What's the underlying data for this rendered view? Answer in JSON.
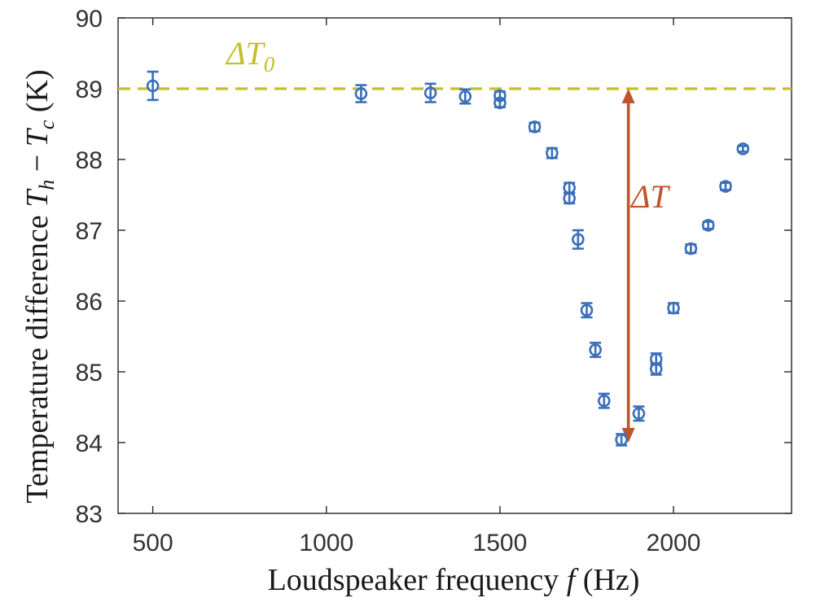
{
  "chart_data": {
    "type": "scatter",
    "xlabel": {
      "text": "Loudspeaker frequency ",
      "var": "f",
      "unit": " (Hz)"
    },
    "ylabel": {
      "text": "Temperature difference ",
      "var1": "T",
      "sub1": "h",
      "minus": " − ",
      "var2": "T",
      "sub2": "c",
      "unit": " (K)"
    },
    "xlim": [
      400,
      2340
    ],
    "ylim": [
      83,
      90
    ],
    "xticks": [
      "500",
      "1000",
      "1500",
      "2000"
    ],
    "xtick_values": [
      500,
      1000,
      1500,
      2000
    ],
    "yticks": [
      "83",
      "84",
      "85",
      "86",
      "87",
      "88",
      "89",
      "90"
    ],
    "ytick_values": [
      83,
      84,
      85,
      86,
      87,
      88,
      89,
      90
    ],
    "grid": false,
    "reference_line": {
      "y": 89.0,
      "label": "ΔT",
      "label_sub": "0",
      "color": "#c4bf2c"
    },
    "arrow": {
      "x": 1870,
      "y_from": 89.0,
      "y_to": 84.0,
      "label": "ΔT",
      "color": "#c0532a"
    },
    "series": [
      {
        "marker_color": "#3a6fba",
        "points": [
          {
            "x": 500,
            "y": 89.04,
            "err": 0.2
          },
          {
            "x": 1100,
            "y": 88.93,
            "err": 0.12
          },
          {
            "x": 1300,
            "y": 88.94,
            "err": 0.13
          },
          {
            "x": 1400,
            "y": 88.89,
            "err": 0.1
          },
          {
            "x": 1500,
            "y": 88.9,
            "err": 0.06
          },
          {
            "x": 1500,
            "y": 88.8,
            "err": 0.06
          },
          {
            "x": 1600,
            "y": 88.46,
            "err": 0.06
          },
          {
            "x": 1650,
            "y": 88.09,
            "err": 0.07
          },
          {
            "x": 1700,
            "y": 87.6,
            "err": 0.07
          },
          {
            "x": 1700,
            "y": 87.45,
            "err": 0.07
          },
          {
            "x": 1725,
            "y": 86.87,
            "err": 0.13
          },
          {
            "x": 1750,
            "y": 85.87,
            "err": 0.1
          },
          {
            "x": 1775,
            "y": 85.31,
            "err": 0.1
          },
          {
            "x": 1800,
            "y": 84.59,
            "err": 0.1
          },
          {
            "x": 1850,
            "y": 84.04,
            "err": 0.08
          },
          {
            "x": 1900,
            "y": 84.41,
            "err": 0.1
          },
          {
            "x": 1950,
            "y": 85.18,
            "err": 0.08
          },
          {
            "x": 1950,
            "y": 85.04,
            "err": 0.08
          },
          {
            "x": 2000,
            "y": 85.9,
            "err": 0.07
          },
          {
            "x": 2050,
            "y": 86.74,
            "err": 0.06
          },
          {
            "x": 2100,
            "y": 87.07,
            "err": 0.05
          },
          {
            "x": 2150,
            "y": 87.62,
            "err": 0.05
          },
          {
            "x": 2200,
            "y": 88.15,
            "err": 0.04
          }
        ]
      }
    ]
  }
}
